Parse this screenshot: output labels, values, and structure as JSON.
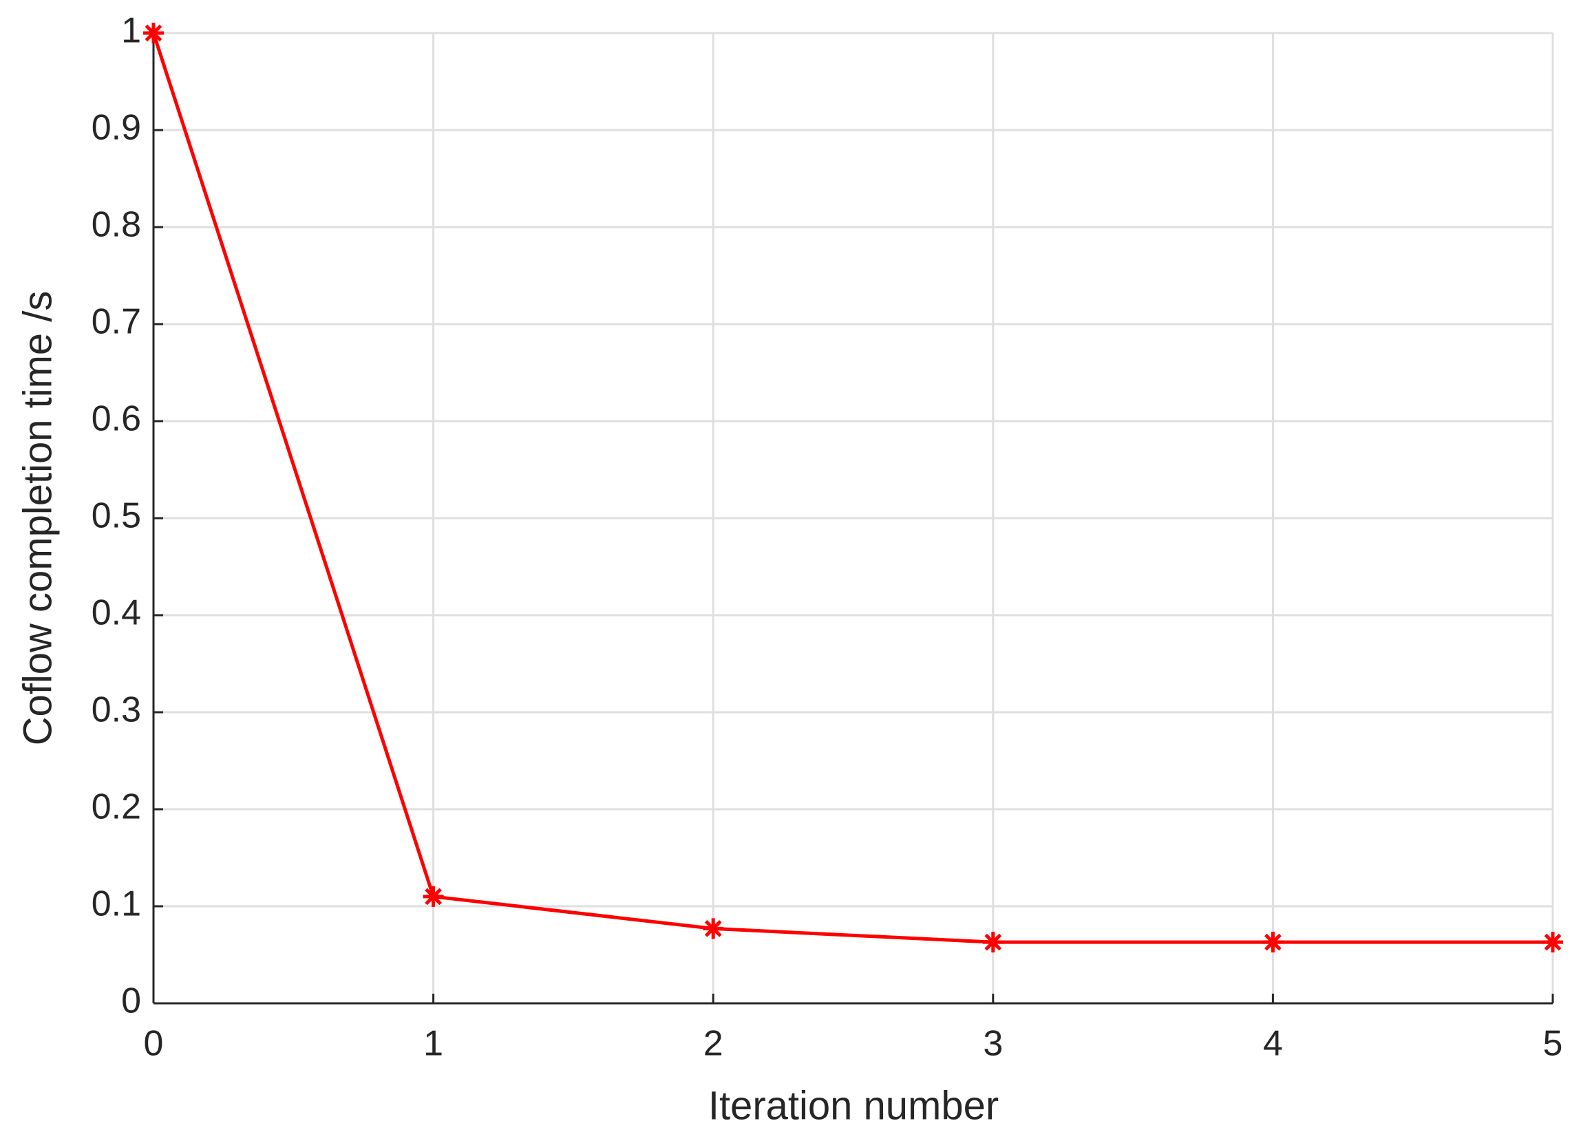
{
  "chart_data": {
    "type": "line",
    "x_label": "Iteration number",
    "y_label": "Coflow completion time /s",
    "x": [
      0,
      1,
      2,
      3,
      4,
      5
    ],
    "series": [
      {
        "color": "#ff0000",
        "marker": "star",
        "values": [
          1,
          0.11,
          0.077,
          0.063,
          0.063,
          0.063
        ]
      }
    ],
    "xlim": [
      0,
      5
    ],
    "xticks": [
      0,
      1,
      2,
      3,
      4,
      5
    ],
    "ylim": [
      0,
      1
    ],
    "yticks": [
      0,
      0.1,
      0.2,
      0.3,
      0.4,
      0.5,
      0.6,
      0.7,
      0.8,
      0.9,
      1
    ],
    "grid": true
  }
}
